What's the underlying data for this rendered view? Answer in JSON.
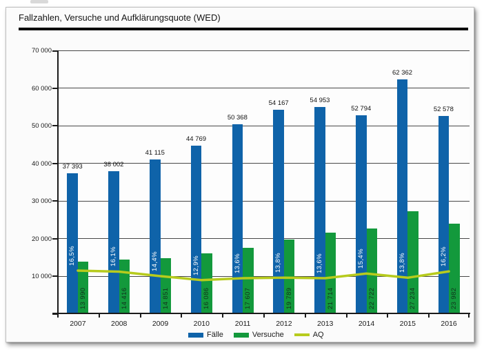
{
  "window": {
    "title": "Fallzahlen, Versuche und Aufklärungsquote (WED)"
  },
  "chart_data": {
    "type": "bar",
    "title": "Fallzahlen, Versuche und Aufklärungsquote (WED)",
    "categories": [
      "2007",
      "2008",
      "2009",
      "2010",
      "2011",
      "2012",
      "2013",
      "2014",
      "2015",
      "2016"
    ],
    "series": [
      {
        "name": "Fälle",
        "type": "bar",
        "color": "#0f63a9",
        "values": [
          37393,
          38002,
          41115,
          44769,
          50368,
          54167,
          54953,
          52794,
          62362,
          52578
        ],
        "labels": [
          "37 393",
          "38 002",
          "41 115",
          "44 769",
          "50 368",
          "54 167",
          "54 953",
          "52 794",
          "62 362",
          "52 578"
        ]
      },
      {
        "name": "Versuche",
        "type": "bar",
        "color": "#13993c",
        "values": [
          13990,
          14416,
          14851,
          16086,
          17607,
          19789,
          21714,
          22722,
          27234,
          23982
        ],
        "labels": [
          "13 990",
          "14 416",
          "14 851",
          "16 086",
          "17 607",
          "19 789",
          "21 714",
          "22 722",
          "27 234",
          "23 982"
        ]
      },
      {
        "name": "AQ",
        "type": "line",
        "axis": "secondary_percent",
        "color": "#b7cb1d",
        "values": [
          16.5,
          16.1,
          14.4,
          12.9,
          13.6,
          13.8,
          13.6,
          15.4,
          13.8,
          16.2
        ],
        "labels": [
          "16,5%",
          "16,1%",
          "14,4%",
          "12,9%",
          "13,6%",
          "13,8%",
          "13,6%",
          "15,4%",
          "13,8%",
          "16,2%"
        ]
      }
    ],
    "y_axis": {
      "min": 0,
      "max": 70000,
      "tick_step": 10000,
      "tick_labels": [
        "10 000",
        "20 000",
        "30 000",
        "40 000",
        "50 000",
        "60 000",
        "70 000"
      ],
      "gridlines": true
    },
    "secondary_y_axis": {
      "min": 0,
      "max": 100,
      "visible": false
    },
    "legend": {
      "position": "bottom",
      "entries": [
        "Fälle",
        "Versuche",
        "AQ"
      ]
    }
  }
}
